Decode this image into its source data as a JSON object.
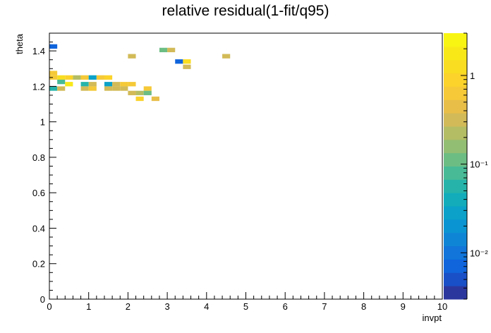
{
  "chart_data": {
    "type": "heatmap",
    "title": "relative residual(1-fit/q95)",
    "xlabel": "invpt",
    "ylabel": "theta",
    "xlim": [
      0,
      10
    ],
    "ylim": [
      0,
      1.5
    ],
    "x_ticks": [
      "0",
      "1",
      "2",
      "3",
      "4",
      "5",
      "6",
      "7",
      "8",
      "9",
      "10"
    ],
    "y_ticks": [
      "0",
      "0.2",
      "0.4",
      "0.6",
      "0.8",
      "1",
      "1.2",
      "1.4"
    ],
    "colorbar": {
      "scale": "log",
      "range": [
        0.003,
        3
      ],
      "tick_labels": [
        "10⁻²",
        "10⁻¹",
        "1"
      ],
      "tick_values": [
        0.01,
        0.1,
        1
      ]
    },
    "bin_size": {
      "x": 0.2,
      "y": 0.025
    },
    "cells": [
      {
        "x": 0.1,
        "y": 1.425,
        "v": 0.008
      },
      {
        "x": 0.1,
        "y": 1.275,
        "v": 0.6
      },
      {
        "x": 0.1,
        "y": 1.25,
        "v": 0.6
      },
      {
        "x": 0.1,
        "y": 1.1875,
        "v": 0.06
      },
      {
        "x": 0.3,
        "y": 1.25,
        "v": 1.2
      },
      {
        "x": 0.3,
        "y": 1.225,
        "v": 0.08
      },
      {
        "x": 0.3,
        "y": 1.1875,
        "v": 0.35
      },
      {
        "x": 0.5,
        "y": 1.25,
        "v": 0.8
      },
      {
        "x": 0.5,
        "y": 1.2125,
        "v": 1.8
      },
      {
        "x": 0.7,
        "y": 1.25,
        "v": 0.25
      },
      {
        "x": 0.9,
        "y": 1.25,
        "v": 0.6
      },
      {
        "x": 0.9,
        "y": 1.2125,
        "v": 0.05
      },
      {
        "x": 0.9,
        "y": 1.1875,
        "v": 0.35
      },
      {
        "x": 1.1,
        "y": 1.25,
        "v": 0.03
      },
      {
        "x": 1.1,
        "y": 1.2125,
        "v": 0.3
      },
      {
        "x": 1.1,
        "y": 1.1875,
        "v": 0.6
      },
      {
        "x": 1.3,
        "y": 1.25,
        "v": 0.7
      },
      {
        "x": 1.5,
        "y": 1.25,
        "v": 0.8
      },
      {
        "x": 1.5,
        "y": 1.2125,
        "v": 0.03
      },
      {
        "x": 1.5,
        "y": 1.1875,
        "v": 0.35
      },
      {
        "x": 1.7,
        "y": 1.2125,
        "v": 0.35
      },
      {
        "x": 1.7,
        "y": 1.1875,
        "v": 0.35
      },
      {
        "x": 1.9,
        "y": 1.2125,
        "v": 0.6
      },
      {
        "x": 1.9,
        "y": 1.1875,
        "v": 0.35
      },
      {
        "x": 2.1,
        "y": 1.37,
        "v": 0.35
      },
      {
        "x": 2.1,
        "y": 1.2125,
        "v": 0.6
      },
      {
        "x": 2.1,
        "y": 1.1625,
        "v": 0.35
      },
      {
        "x": 2.3,
        "y": 1.1625,
        "v": 0.2
      },
      {
        "x": 2.3,
        "y": 1.13,
        "v": 0.8
      },
      {
        "x": 2.5,
        "y": 1.1875,
        "v": 0.6
      },
      {
        "x": 2.5,
        "y": 1.1625,
        "v": 0.12
      },
      {
        "x": 2.7,
        "y": 1.13,
        "v": 0.5
      },
      {
        "x": 2.9,
        "y": 1.405,
        "v": 0.12
      },
      {
        "x": 3.1,
        "y": 1.405,
        "v": 0.3
      },
      {
        "x": 3.3,
        "y": 1.34,
        "v": 0.008
      },
      {
        "x": 3.5,
        "y": 1.34,
        "v": 1.2
      },
      {
        "x": 3.5,
        "y": 1.31,
        "v": 0.35
      },
      {
        "x": 4.5,
        "y": 1.37,
        "v": 0.35
      }
    ]
  }
}
